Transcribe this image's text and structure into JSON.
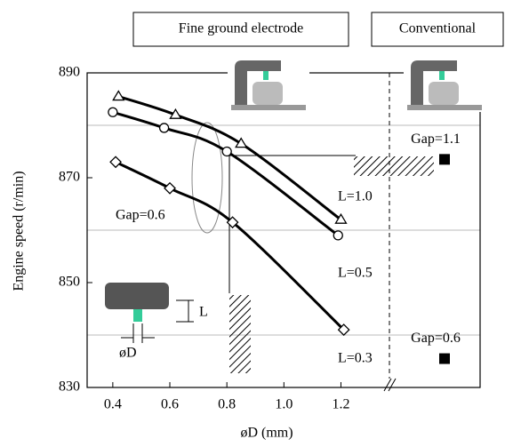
{
  "chart_data": {
    "type": "line",
    "header_labels": [
      "Fine ground electrode",
      "Conventional"
    ],
    "x_label": "øD (mm)",
    "y_label": "Engine speed  (r/min)",
    "xlim": [
      0.31,
      1.37
    ],
    "ylim": [
      830,
      890
    ],
    "xticks": [
      0.4,
      0.6,
      0.8,
      {
        "value": 1,
        "label": "1.0"
      },
      1.2
    ],
    "yticks": [
      830,
      850,
      870,
      890
    ],
    "grid_lines": [
      840,
      860,
      880
    ],
    "series": [
      {
        "name": "L=1.0",
        "color": "#000000",
        "marker": "triangle",
        "x": [
          0.42,
          0.62,
          0.85,
          1.2
        ],
        "values": [
          885.5,
          882,
          876.5,
          862
        ]
      },
      {
        "name": "L=0.5",
        "color": "#000000",
        "marker": "circle",
        "x": [
          0.4,
          0.58,
          0.8,
          1.19
        ],
        "values": [
          882.5,
          879.5,
          875,
          859
        ]
      },
      {
        "name": "L=0.3",
        "color": "#000000",
        "marker": "diamond",
        "x": [
          0.41,
          0.6,
          0.82,
          1.21
        ],
        "values": [
          873,
          868,
          861.5,
          841
        ]
      }
    ],
    "annotation": "Gap=0.6",
    "conventional": {
      "labels": [
        "Gap=1.1",
        "Gap=0.6"
      ],
      "values": [
        873.5,
        835.5
      ],
      "color": "#000000"
    },
    "inset_labels": [
      "L",
      "øD"
    ]
  }
}
